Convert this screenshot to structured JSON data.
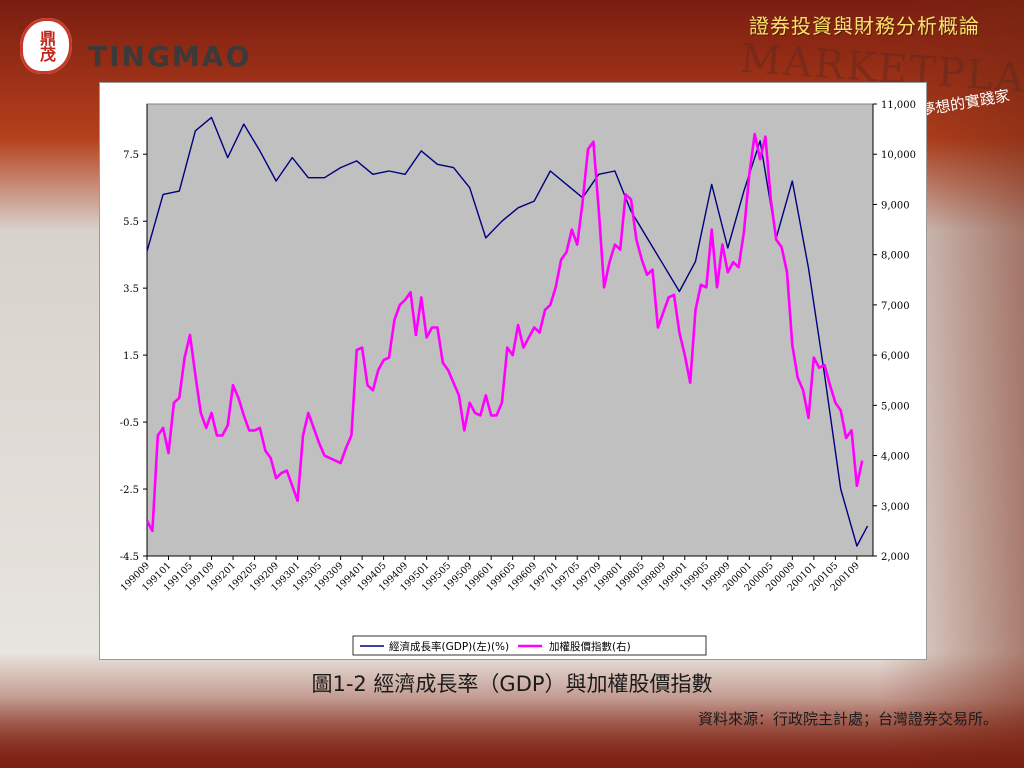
{
  "header": {
    "title": "證券投資與財務分析概論",
    "logo_seal": "鼎茂",
    "logo_text": "TINGMAO",
    "deco_market": "MARKETPLACE",
    "deco_tag": "夢想的實踐家"
  },
  "caption": "圖1-2 經濟成長率（GDP）與加權股價指數",
  "source": "資料來源：行政院主計處；台灣證券交易所。",
  "colors": {
    "plot_background": "#c0c0c0",
    "gdp_line": "#000080",
    "taiex_line": "#ff00ff"
  },
  "chart_data": {
    "type": "line",
    "title": "",
    "xlabel": "",
    "ylabel_left": "",
    "ylabel_right": "",
    "grid": false,
    "legend_position": "bottom",
    "left_axis": {
      "range": [
        -4.5,
        9.0
      ],
      "ticks": [
        -4.5,
        -2.5,
        -0.5,
        1.5,
        3.5,
        5.5,
        7.5
      ]
    },
    "right_axis": {
      "range": [
        2000,
        11000
      ],
      "ticks": [
        2000,
        3000,
        4000,
        5000,
        6000,
        7000,
        8000,
        9000,
        10000,
        11000
      ],
      "tick_labels": [
        "2,000",
        "3,000",
        "4,000",
        "5,000",
        "6,000",
        "7,000",
        "8,000",
        "9,000",
        "10,000",
        "11,000"
      ]
    },
    "x_tick_labels": [
      "199009",
      "199101",
      "199105",
      "199109",
      "199201",
      "199205",
      "199209",
      "199301",
      "199305",
      "199309",
      "199401",
      "199405",
      "199409",
      "199501",
      "199505",
      "199509",
      "199601",
      "199605",
      "199609",
      "199701",
      "199705",
      "199709",
      "199801",
      "199805",
      "199809",
      "199901",
      "199905",
      "199909",
      "200001",
      "200005",
      "200009",
      "200101",
      "200105",
      "200109"
    ],
    "x_start_month": "1990-09",
    "x_end_month": "2001-12",
    "series": [
      {
        "name": "經濟成長率(GDP)(左)(%)",
        "axis": "left",
        "points": [
          [
            "1990-09",
            4.6
          ],
          [
            "1990-12",
            6.3
          ],
          [
            "1991-03",
            6.4
          ],
          [
            "1991-06",
            8.2
          ],
          [
            "1991-09",
            8.6
          ],
          [
            "1991-12",
            7.4
          ],
          [
            "1992-03",
            8.4
          ],
          [
            "1992-06",
            7.6
          ],
          [
            "1992-09",
            6.7
          ],
          [
            "1992-12",
            7.4
          ],
          [
            "1993-03",
            6.8
          ],
          [
            "1993-06",
            6.8
          ],
          [
            "1993-09",
            7.1
          ],
          [
            "1993-12",
            7.3
          ],
          [
            "1994-03",
            6.9
          ],
          [
            "1994-06",
            7.0
          ],
          [
            "1994-09",
            6.9
          ],
          [
            "1994-12",
            7.6
          ],
          [
            "1995-03",
            7.2
          ],
          [
            "1995-06",
            7.1
          ],
          [
            "1995-09",
            6.5
          ],
          [
            "1995-12",
            5.0
          ],
          [
            "1996-03",
            5.5
          ],
          [
            "1996-06",
            5.9
          ],
          [
            "1996-09",
            6.1
          ],
          [
            "1996-12",
            7.0
          ],
          [
            "1997-03",
            6.6
          ],
          [
            "1997-06",
            6.2
          ],
          [
            "1997-09",
            6.9
          ],
          [
            "1997-12",
            7.0
          ],
          [
            "1998-03",
            5.8
          ],
          [
            "1998-06",
            5.0
          ],
          [
            "1998-09",
            4.2
          ],
          [
            "1998-12",
            3.4
          ],
          [
            "1999-03",
            4.3
          ],
          [
            "1999-06",
            6.6
          ],
          [
            "1999-09",
            4.7
          ],
          [
            "1999-12",
            6.4
          ],
          [
            "2000-03",
            7.9
          ],
          [
            "2000-06",
            5.0
          ],
          [
            "2000-09",
            6.7
          ],
          [
            "2000-12",
            4.1
          ],
          [
            "2001-03",
            0.9
          ],
          [
            "2001-06",
            -2.5
          ],
          [
            "2001-09",
            -4.2
          ],
          [
            "2001-11",
            -3.6
          ]
        ]
      },
      {
        "name": "加權股價指數(右)",
        "axis": "right",
        "points": [
          [
            "1990-09",
            2700
          ],
          [
            "1990-10",
            2500
          ],
          [
            "1990-11",
            4400
          ],
          [
            "1990-12",
            4550
          ],
          [
            "1991-01",
            4050
          ],
          [
            "1991-02",
            5050
          ],
          [
            "1991-03",
            5150
          ],
          [
            "1991-04",
            5950
          ],
          [
            "1991-05",
            6400
          ],
          [
            "1991-06",
            5600
          ],
          [
            "1991-07",
            4850
          ],
          [
            "1991-08",
            4550
          ],
          [
            "1991-09",
            4850
          ],
          [
            "1991-10",
            4400
          ],
          [
            "1991-11",
            4400
          ],
          [
            "1991-12",
            4600
          ],
          [
            "1992-01",
            5400
          ],
          [
            "1992-02",
            5150
          ],
          [
            "1992-03",
            4800
          ],
          [
            "1992-04",
            4500
          ],
          [
            "1992-05",
            4500
          ],
          [
            "1992-06",
            4550
          ],
          [
            "1992-07",
            4100
          ],
          [
            "1992-08",
            3950
          ],
          [
            "1992-09",
            3550
          ],
          [
            "1992-10",
            3650
          ],
          [
            "1992-11",
            3700
          ],
          [
            "1992-12",
            3400
          ],
          [
            "1993-01",
            3100
          ],
          [
            "1993-02",
            4400
          ],
          [
            "1993-03",
            4850
          ],
          [
            "1993-04",
            4550
          ],
          [
            "1993-05",
            4250
          ],
          [
            "1993-06",
            4000
          ],
          [
            "1993-07",
            3950
          ],
          [
            "1993-08",
            3900
          ],
          [
            "1993-09",
            3850
          ],
          [
            "1993-10",
            4150
          ],
          [
            "1993-11",
            4400
          ],
          [
            "1993-12",
            6100
          ],
          [
            "1994-01",
            6150
          ],
          [
            "1994-02",
            5400
          ],
          [
            "1994-03",
            5300
          ],
          [
            "1994-04",
            5700
          ],
          [
            "1994-05",
            5900
          ],
          [
            "1994-06",
            5950
          ],
          [
            "1994-07",
            6700
          ],
          [
            "1994-08",
            7000
          ],
          [
            "1994-09",
            7100
          ],
          [
            "1994-10",
            7250
          ],
          [
            "1994-11",
            6400
          ],
          [
            "1994-12",
            7150
          ],
          [
            "1995-01",
            6350
          ],
          [
            "1995-02",
            6550
          ],
          [
            "1995-03",
            6550
          ],
          [
            "1995-04",
            5850
          ],
          [
            "1995-05",
            5700
          ],
          [
            "1995-06",
            5450
          ],
          [
            "1995-07",
            5200
          ],
          [
            "1995-08",
            4500
          ],
          [
            "1995-09",
            5050
          ],
          [
            "1995-10",
            4850
          ],
          [
            "1995-11",
            4800
          ],
          [
            "1995-12",
            5200
          ],
          [
            "1996-01",
            4800
          ],
          [
            "1996-02",
            4800
          ],
          [
            "1996-03",
            5050
          ],
          [
            "1996-04",
            6150
          ],
          [
            "1996-05",
            6000
          ],
          [
            "1996-06",
            6600
          ],
          [
            "1996-07",
            6150
          ],
          [
            "1996-08",
            6350
          ],
          [
            "1996-09",
            6550
          ],
          [
            "1996-10",
            6450
          ],
          [
            "1996-11",
            6900
          ],
          [
            "1996-12",
            7000
          ],
          [
            "1997-01",
            7350
          ],
          [
            "1997-02",
            7900
          ],
          [
            "1997-03",
            8050
          ],
          [
            "1997-04",
            8500
          ],
          [
            "1997-05",
            8200
          ],
          [
            "1997-06",
            9050
          ],
          [
            "1997-07",
            10100
          ],
          [
            "1997-08",
            10250
          ],
          [
            "1997-09",
            8900
          ],
          [
            "1997-10",
            7350
          ],
          [
            "1997-11",
            7850
          ],
          [
            "1997-12",
            8200
          ],
          [
            "1998-01",
            8100
          ],
          [
            "1998-02",
            9200
          ],
          [
            "1998-03",
            9100
          ],
          [
            "1998-04",
            8300
          ],
          [
            "1998-05",
            7900
          ],
          [
            "1998-06",
            7600
          ],
          [
            "1998-07",
            7700
          ],
          [
            "1998-08",
            6550
          ],
          [
            "1998-09",
            6850
          ],
          [
            "1998-10",
            7150
          ],
          [
            "1998-11",
            7200
          ],
          [
            "1998-12",
            6450
          ],
          [
            "1999-01",
            6000
          ],
          [
            "1999-02",
            5450
          ],
          [
            "1999-03",
            6900
          ],
          [
            "1999-04",
            7400
          ],
          [
            "1999-05",
            7350
          ],
          [
            "1999-06",
            8500
          ],
          [
            "1999-07",
            7350
          ],
          [
            "1999-08",
            8200
          ],
          [
            "1999-09",
            7650
          ],
          [
            "1999-10",
            7850
          ],
          [
            "1999-11",
            7750
          ],
          [
            "1999-12",
            8450
          ],
          [
            "2000-01",
            9600
          ],
          [
            "2000-02",
            10400
          ],
          [
            "2000-03",
            9900
          ],
          [
            "2000-04",
            10350
          ],
          [
            "2000-05",
            9100
          ],
          [
            "2000-06",
            8300
          ],
          [
            "2000-07",
            8150
          ],
          [
            "2000-08",
            7650
          ],
          [
            "2000-09",
            6200
          ],
          [
            "2000-10",
            5550
          ],
          [
            "2000-11",
            5300
          ],
          [
            "2000-12",
            4750
          ],
          [
            "2001-01",
            5950
          ],
          [
            "2001-02",
            5750
          ],
          [
            "2001-03",
            5800
          ],
          [
            "2001-04",
            5400
          ],
          [
            "2001-05",
            5050
          ],
          [
            "2001-06",
            4900
          ],
          [
            "2001-07",
            4350
          ],
          [
            "2001-08",
            4500
          ],
          [
            "2001-09",
            3400
          ],
          [
            "2001-10",
            3900
          ]
        ]
      }
    ]
  }
}
